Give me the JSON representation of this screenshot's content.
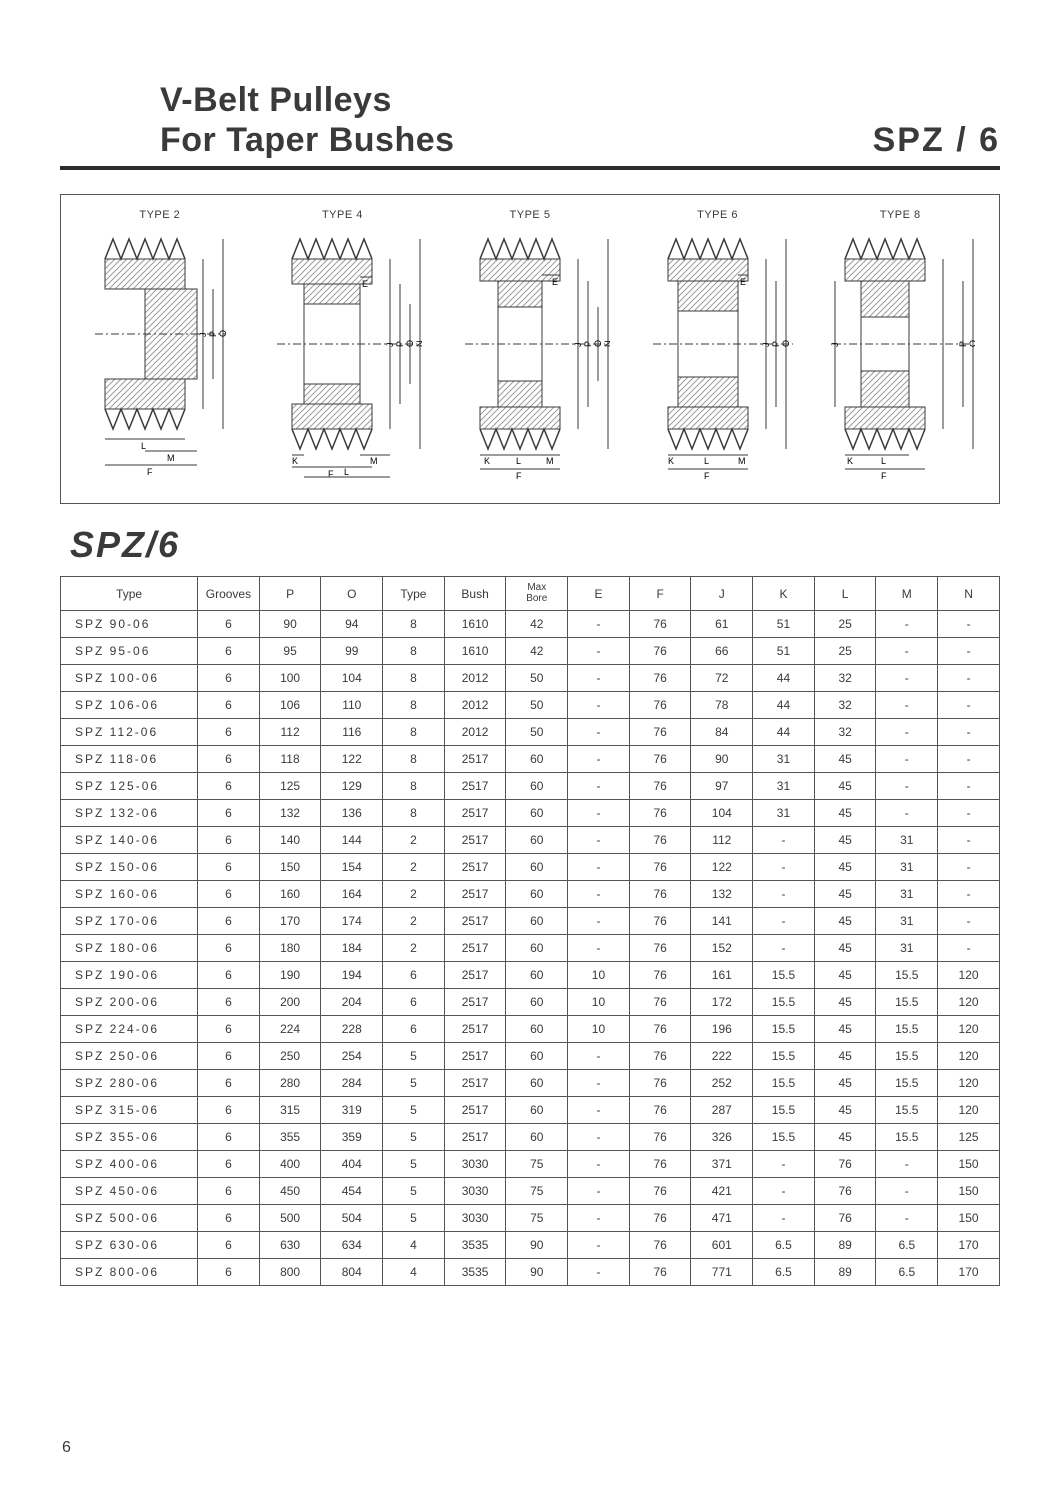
{
  "header": {
    "title_line1": "V-Belt  Pulleys",
    "title_line2": "For Taper Bushes",
    "title_right": "SPZ / 6"
  },
  "diagrams": {
    "labels": [
      "TYPE 2",
      "TYPE 4",
      "TYPE 5",
      "TYPE 6",
      "TYPE 8"
    ],
    "dim_letters": [
      "J",
      "P",
      "O",
      "N",
      "E",
      "L",
      "M",
      "F",
      "K"
    ]
  },
  "section_title": "SPZ/6",
  "table": {
    "columns": [
      "Type",
      "Grooves",
      "P",
      "O",
      "Type",
      "Bush",
      "Max Bore",
      "E",
      "F",
      "J",
      "K",
      "L",
      "M",
      "N"
    ],
    "col_widths": [
      "120",
      "54",
      "54",
      "54",
      "54",
      "54",
      "54",
      "54",
      "54",
      "54",
      "54",
      "54",
      "54",
      "54"
    ],
    "rows": [
      [
        "SPZ  90-06",
        "6",
        "90",
        "94",
        "8",
        "1610",
        "42",
        "-",
        "76",
        "61",
        "51",
        "25",
        "-",
        "-"
      ],
      [
        "SPZ  95-06",
        "6",
        "95",
        "99",
        "8",
        "1610",
        "42",
        "-",
        "76",
        "66",
        "51",
        "25",
        "-",
        "-"
      ],
      [
        "SPZ 100-06",
        "6",
        "100",
        "104",
        "8",
        "2012",
        "50",
        "-",
        "76",
        "72",
        "44",
        "32",
        "-",
        "-"
      ],
      [
        "SPZ 106-06",
        "6",
        "106",
        "110",
        "8",
        "2012",
        "50",
        "-",
        "76",
        "78",
        "44",
        "32",
        "-",
        "-"
      ],
      [
        "SPZ 112-06",
        "6",
        "112",
        "116",
        "8",
        "2012",
        "50",
        "-",
        "76",
        "84",
        "44",
        "32",
        "-",
        "-"
      ],
      [
        "SPZ 118-06",
        "6",
        "118",
        "122",
        "8",
        "2517",
        "60",
        "-",
        "76",
        "90",
        "31",
        "45",
        "-",
        "-"
      ],
      [
        "SPZ 125-06",
        "6",
        "125",
        "129",
        "8",
        "2517",
        "60",
        "-",
        "76",
        "97",
        "31",
        "45",
        "-",
        "-"
      ],
      [
        "SPZ 132-06",
        "6",
        "132",
        "136",
        "8",
        "2517",
        "60",
        "-",
        "76",
        "104",
        "31",
        "45",
        "-",
        "-"
      ],
      [
        "SPZ 140-06",
        "6",
        "140",
        "144",
        "2",
        "2517",
        "60",
        "-",
        "76",
        "112",
        "-",
        "45",
        "31",
        "-"
      ],
      [
        "SPZ 150-06",
        "6",
        "150",
        "154",
        "2",
        "2517",
        "60",
        "-",
        "76",
        "122",
        "-",
        "45",
        "31",
        "-"
      ],
      [
        "SPZ 160-06",
        "6",
        "160",
        "164",
        "2",
        "2517",
        "60",
        "-",
        "76",
        "132",
        "-",
        "45",
        "31",
        "-"
      ],
      [
        "SPZ 170-06",
        "6",
        "170",
        "174",
        "2",
        "2517",
        "60",
        "-",
        "76",
        "141",
        "-",
        "45",
        "31",
        "-"
      ],
      [
        "SPZ 180-06",
        "6",
        "180",
        "184",
        "2",
        "2517",
        "60",
        "-",
        "76",
        "152",
        "-",
        "45",
        "31",
        "-"
      ],
      [
        "SPZ 190-06",
        "6",
        "190",
        "194",
        "6",
        "2517",
        "60",
        "10",
        "76",
        "161",
        "15.5",
        "45",
        "15.5",
        "120"
      ],
      [
        "SPZ 200-06",
        "6",
        "200",
        "204",
        "6",
        "2517",
        "60",
        "10",
        "76",
        "172",
        "15.5",
        "45",
        "15.5",
        "120"
      ],
      [
        "SPZ 224-06",
        "6",
        "224",
        "228",
        "6",
        "2517",
        "60",
        "10",
        "76",
        "196",
        "15.5",
        "45",
        "15.5",
        "120"
      ],
      [
        "SPZ 250-06",
        "6",
        "250",
        "254",
        "5",
        "2517",
        "60",
        "-",
        "76",
        "222",
        "15.5",
        "45",
        "15.5",
        "120"
      ],
      [
        "SPZ 280-06",
        "6",
        "280",
        "284",
        "5",
        "2517",
        "60",
        "-",
        "76",
        "252",
        "15.5",
        "45",
        "15.5",
        "120"
      ],
      [
        "SPZ 315-06",
        "6",
        "315",
        "319",
        "5",
        "2517",
        "60",
        "-",
        "76",
        "287",
        "15.5",
        "45",
        "15.5",
        "120"
      ],
      [
        "SPZ 355-06",
        "6",
        "355",
        "359",
        "5",
        "2517",
        "60",
        "-",
        "76",
        "326",
        "15.5",
        "45",
        "15.5",
        "125"
      ],
      [
        "SPZ 400-06",
        "6",
        "400",
        "404",
        "5",
        "3030",
        "75",
        "-",
        "76",
        "371",
        "-",
        "76",
        "-",
        "150"
      ],
      [
        "SPZ 450-06",
        "6",
        "450",
        "454",
        "5",
        "3030",
        "75",
        "-",
        "76",
        "421",
        "-",
        "76",
        "-",
        "150"
      ],
      [
        "SPZ 500-06",
        "6",
        "500",
        "504",
        "5",
        "3030",
        "75",
        "-",
        "76",
        "471",
        "-",
        "76",
        "-",
        "150"
      ],
      [
        "SPZ 630-06",
        "6",
        "630",
        "634",
        "4",
        "3535",
        "90",
        "-",
        "76",
        "601",
        "6.5",
        "89",
        "6.5",
        "170"
      ],
      [
        "SPZ 800-06",
        "6",
        "800",
        "804",
        "4",
        "3535",
        "90",
        "-",
        "76",
        "771",
        "6.5",
        "89",
        "6.5",
        "170"
      ]
    ]
  },
  "page_number": "6",
  "colors": {
    "text": "#3a3a3a",
    "border": "#555555",
    "rule": "#2d2d2d",
    "hatch": "#9d9d9d"
  }
}
